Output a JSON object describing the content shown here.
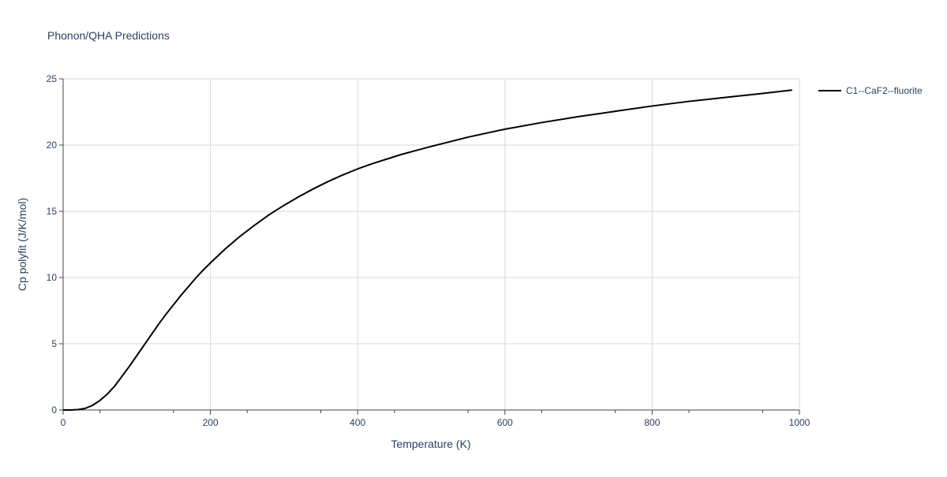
{
  "chart_data": {
    "type": "line",
    "title": "Phonon/QHA Predictions",
    "xlabel": "Temperature (K)",
    "ylabel": "Cp polyfit (J/K/mol)",
    "xlim": [
      0,
      1000
    ],
    "ylim": [
      0,
      25
    ],
    "xticks": [
      0,
      200,
      400,
      600,
      800,
      1000
    ],
    "yticks": [
      0,
      5,
      10,
      15,
      20,
      25
    ],
    "grid": true,
    "legend_position": "top-right",
    "series": [
      {
        "name": "C1--CaF2--fluorite",
        "color": "#000000",
        "x": [
          0,
          10,
          20,
          30,
          40,
          50,
          60,
          70,
          80,
          90,
          100,
          110,
          120,
          130,
          140,
          150,
          160,
          170,
          180,
          190,
          200,
          220,
          240,
          260,
          280,
          300,
          320,
          340,
          360,
          380,
          400,
          420,
          440,
          460,
          480,
          500,
          550,
          600,
          650,
          700,
          750,
          800,
          850,
          900,
          950,
          990
        ],
        "y": [
          0.0,
          0.0,
          0.03,
          0.12,
          0.35,
          0.72,
          1.2,
          1.8,
          2.55,
          3.3,
          4.1,
          4.9,
          5.7,
          6.5,
          7.25,
          7.95,
          8.65,
          9.3,
          9.95,
          10.55,
          11.1,
          12.15,
          13.1,
          13.95,
          14.75,
          15.45,
          16.1,
          16.7,
          17.25,
          17.75,
          18.2,
          18.6,
          18.95,
          19.3,
          19.6,
          19.9,
          20.6,
          21.2,
          21.7,
          22.15,
          22.55,
          22.95,
          23.3,
          23.6,
          23.9,
          24.15
        ]
      }
    ]
  }
}
